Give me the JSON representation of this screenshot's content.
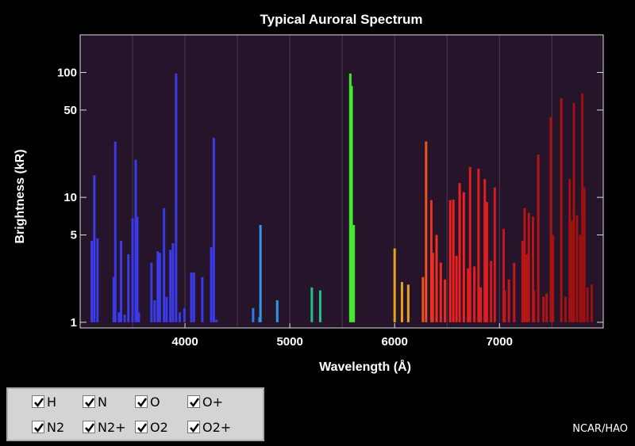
{
  "chart_data": {
    "type": "bar",
    "title": "Typical Auroral Spectrum",
    "xlabel": "Wavelength (Å)",
    "ylabel": "Brightness (kR)",
    "scale": "log",
    "xlim": [
      3000,
      7990
    ],
    "ylim": [
      0.9,
      200
    ],
    "xticks": [
      4000,
      5000,
      6000,
      7000
    ],
    "yticks": [
      1,
      5,
      10,
      50,
      100
    ],
    "grid": "vertical",
    "background": "#25142a",
    "lines": [
      {
        "wl": 3110,
        "kr": 4.5,
        "color": "#3a3ae6"
      },
      {
        "wl": 3135,
        "kr": 15,
        "color": "#3a3ae6"
      },
      {
        "wl": 3165,
        "kr": 4.7,
        "color": "#3a3ae6"
      },
      {
        "wl": 3320,
        "kr": 2.3,
        "color": "#3a3ae6"
      },
      {
        "wl": 3335,
        "kr": 28,
        "color": "#3a3ae6"
      },
      {
        "wl": 3370,
        "kr": 1.2,
        "color": "#3a3ae6"
      },
      {
        "wl": 3390,
        "kr": 4.5,
        "color": "#3a3ae6"
      },
      {
        "wl": 3425,
        "kr": 1.15,
        "color": "#3a3ae6"
      },
      {
        "wl": 3460,
        "kr": 3.5,
        "color": "#3a3ae6"
      },
      {
        "wl": 3500,
        "kr": 6.8,
        "color": "#3a3ae6"
      },
      {
        "wl": 3530,
        "kr": 20,
        "color": "#3a3ae6"
      },
      {
        "wl": 3545,
        "kr": 7,
        "color": "#3a3ae6"
      },
      {
        "wl": 3560,
        "kr": 1.2,
        "color": "#3a3ae6"
      },
      {
        "wl": 3680,
        "kr": 3,
        "color": "#3a3ae6"
      },
      {
        "wl": 3710,
        "kr": 1.5,
        "color": "#3a3ae6"
      },
      {
        "wl": 3740,
        "kr": 3.7,
        "color": "#3a3ae6"
      },
      {
        "wl": 3760,
        "kr": 3.6,
        "color": "#3a3ae6"
      },
      {
        "wl": 3800,
        "kr": 8.2,
        "color": "#3a3ae6"
      },
      {
        "wl": 3825,
        "kr": 1.6,
        "color": "#3a3ae6"
      },
      {
        "wl": 3860,
        "kr": 3.8,
        "color": "#3a3ae6"
      },
      {
        "wl": 3885,
        "kr": 4.3,
        "color": "#3a3ae6"
      },
      {
        "wl": 3915,
        "kr": 98,
        "color": "#3a3ae6"
      },
      {
        "wl": 3950,
        "kr": 1.2,
        "color": "#3a3ae6"
      },
      {
        "wl": 3995,
        "kr": 1.3,
        "color": "#3a3ae6"
      },
      {
        "wl": 4060,
        "kr": 2.5,
        "color": "#3a3ae6"
      },
      {
        "wl": 4085,
        "kr": 2.5,
        "color": "#3a3ae6"
      },
      {
        "wl": 4165,
        "kr": 2.3,
        "color": "#3a3ae6"
      },
      {
        "wl": 4250,
        "kr": 4,
        "color": "#3a3ae6"
      },
      {
        "wl": 4275,
        "kr": 30,
        "color": "#3a3ae6"
      },
      {
        "wl": 4300,
        "kr": 1.05,
        "color": "#3a3ae6"
      },
      {
        "wl": 4650,
        "kr": 1.3,
        "color": "#2f7be6"
      },
      {
        "wl": 4710,
        "kr": 1.1,
        "color": "#2f7be6"
      },
      {
        "wl": 4720,
        "kr": 6,
        "color": "#2f9ae6"
      },
      {
        "wl": 4880,
        "kr": 1.5,
        "color": "#2f9ae6"
      },
      {
        "wl": 5210,
        "kr": 1.9,
        "color": "#22c08a"
      },
      {
        "wl": 5290,
        "kr": 1.8,
        "color": "#22c08a"
      },
      {
        "wl": 5577,
        "kr": 98,
        "color": "#44e82f"
      },
      {
        "wl": 5590,
        "kr": 78,
        "color": "#44e82f"
      },
      {
        "wl": 5610,
        "kr": 6,
        "color": "#44e82f"
      },
      {
        "wl": 6000,
        "kr": 3.9,
        "color": "#e6a21f"
      },
      {
        "wl": 6070,
        "kr": 2.1,
        "color": "#e6a21f"
      },
      {
        "wl": 6130,
        "kr": 2,
        "color": "#e6a21f"
      },
      {
        "wl": 6270,
        "kr": 2.3,
        "color": "#f05020"
      },
      {
        "wl": 6300,
        "kr": 28,
        "color": "#f05020"
      },
      {
        "wl": 6350,
        "kr": 9.5,
        "color": "#ee3020"
      },
      {
        "wl": 6364,
        "kr": 3.6,
        "color": "#ee3020"
      },
      {
        "wl": 6400,
        "kr": 5,
        "color": "#ee3020"
      },
      {
        "wl": 6440,
        "kr": 3,
        "color": "#ee2a20"
      },
      {
        "wl": 6480,
        "kr": 2.2,
        "color": "#ee2a20"
      },
      {
        "wl": 6530,
        "kr": 9.5,
        "color": "#ee2020"
      },
      {
        "wl": 6560,
        "kr": 9.6,
        "color": "#ee2020"
      },
      {
        "wl": 6590,
        "kr": 3.4,
        "color": "#ee2020"
      },
      {
        "wl": 6620,
        "kr": 13,
        "color": "#ee2020"
      },
      {
        "wl": 6660,
        "kr": 11,
        "color": "#ee2020"
      },
      {
        "wl": 6700,
        "kr": 2.7,
        "color": "#e01e1e"
      },
      {
        "wl": 6720,
        "kr": 17.5,
        "color": "#e01e1e"
      },
      {
        "wl": 6760,
        "kr": 2.8,
        "color": "#e01e1e"
      },
      {
        "wl": 6800,
        "kr": 17,
        "color": "#e01e1e"
      },
      {
        "wl": 6820,
        "kr": 1.9,
        "color": "#e01e1e"
      },
      {
        "wl": 6860,
        "kr": 14,
        "color": "#e01e1e"
      },
      {
        "wl": 6880,
        "kr": 9.2,
        "color": "#e01e1e"
      },
      {
        "wl": 6920,
        "kr": 3.1,
        "color": "#d21a1a"
      },
      {
        "wl": 6955,
        "kr": 12,
        "color": "#d21a1a"
      },
      {
        "wl": 7040,
        "kr": 5.6,
        "color": "#c41818"
      },
      {
        "wl": 7050,
        "kr": 1.8,
        "color": "#c41818"
      },
      {
        "wl": 7090,
        "kr": 2.2,
        "color": "#c41818"
      },
      {
        "wl": 7140,
        "kr": 3,
        "color": "#c41818"
      },
      {
        "wl": 7220,
        "kr": 4.5,
        "color": "#b81616"
      },
      {
        "wl": 7240,
        "kr": 8.2,
        "color": "#b81616"
      },
      {
        "wl": 7260,
        "kr": 3.5,
        "color": "#b81616"
      },
      {
        "wl": 7280,
        "kr": 7.5,
        "color": "#b81616"
      },
      {
        "wl": 7320,
        "kr": 7,
        "color": "#b81616"
      },
      {
        "wl": 7330,
        "kr": 1.8,
        "color": "#b81616"
      },
      {
        "wl": 7370,
        "kr": 22,
        "color": "#b01414"
      },
      {
        "wl": 7420,
        "kr": 1.6,
        "color": "#b01414"
      },
      {
        "wl": 7450,
        "kr": 1.7,
        "color": "#b01414"
      },
      {
        "wl": 7490,
        "kr": 44,
        "color": "#a81313"
      },
      {
        "wl": 7510,
        "kr": 5,
        "color": "#a81313"
      },
      {
        "wl": 7590,
        "kr": 62,
        "color": "#a81313"
      },
      {
        "wl": 7630,
        "kr": 1.6,
        "color": "#a01212"
      },
      {
        "wl": 7670,
        "kr": 14,
        "color": "#a01212"
      },
      {
        "wl": 7690,
        "kr": 6.5,
        "color": "#a01212"
      },
      {
        "wl": 7710,
        "kr": 57,
        "color": "#a01212"
      },
      {
        "wl": 7740,
        "kr": 7.2,
        "color": "#a01212"
      },
      {
        "wl": 7770,
        "kr": 5,
        "color": "#9a1111"
      },
      {
        "wl": 7790,
        "kr": 68,
        "color": "#9a1111"
      },
      {
        "wl": 7810,
        "kr": 12,
        "color": "#9a1111"
      },
      {
        "wl": 7840,
        "kr": 1.9,
        "color": "#9a1111"
      },
      {
        "wl": 7880,
        "kr": 2,
        "color": "#9a1111"
      }
    ]
  },
  "species": [
    {
      "label": "H",
      "checked": true
    },
    {
      "label": "N",
      "checked": true
    },
    {
      "label": "O",
      "checked": true
    },
    {
      "label": "O+",
      "checked": true
    },
    {
      "label": "N2",
      "checked": true
    },
    {
      "label": "N2+",
      "checked": true
    },
    {
      "label": "O2",
      "checked": true
    },
    {
      "label": "O2+",
      "checked": true
    }
  ],
  "credit": "NCAR/HAO"
}
